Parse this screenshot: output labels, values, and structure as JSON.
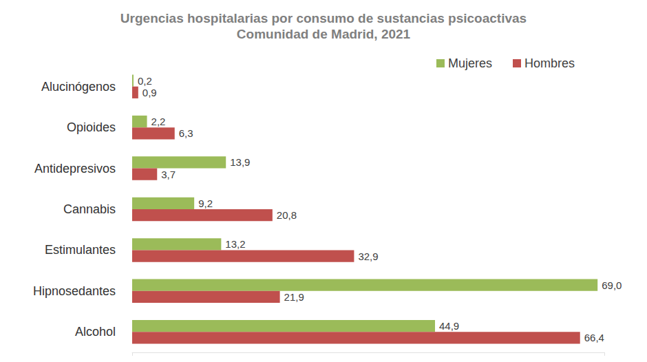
{
  "chart_data": {
    "type": "bar",
    "orientation": "horizontal",
    "title": "Urgencias hospitalarias por consumo de sustancias psicoactivas",
    "subtitle": "Comunidad de Madrid, 2021",
    "categories": [
      "Alucinógenos",
      "Opioides",
      "Antidepresivos",
      "Cannabis",
      "Estimulantes",
      "Hipnosedantes",
      "Alcohol"
    ],
    "series": [
      {
        "name": "Mujeres",
        "color": "#9bbb59",
        "values": [
          0.2,
          2.2,
          13.9,
          9.2,
          13.2,
          69.0,
          44.9
        ],
        "value_labels": [
          "0,2",
          "2,2",
          "13,9",
          "9,2",
          "13,2",
          "69,0",
          "44,9"
        ]
      },
      {
        "name": "Hombres",
        "color": "#c0504d",
        "values": [
          0.9,
          6.3,
          3.7,
          20.8,
          32.9,
          21.9,
          66.4
        ],
        "value_labels": [
          "0,9",
          "6,3",
          "3,7",
          "20,8",
          "32,9",
          "21,9",
          "66,4"
        ]
      }
    ],
    "xlim": [
      0,
      70
    ],
    "xticks": [
      0,
      70
    ],
    "grid": false,
    "legend": "top-right",
    "data_labels": true,
    "tick_labels": "y"
  }
}
